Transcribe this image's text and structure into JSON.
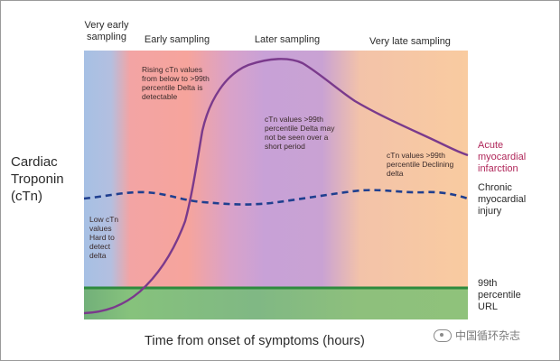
{
  "phases": [
    {
      "label": "Very early sampling"
    },
    {
      "label": "Early sampling"
    },
    {
      "label": "Later sampling"
    },
    {
      "label": "Very late sampling"
    }
  ],
  "notes": [
    {
      "text": "Low cTn values Hard to detect delta"
    },
    {
      "text": "Rising cTn values from below to >99th percentile Delta is detectable"
    },
    {
      "text": "cTn values >99th percentile Delta may not be seen over a short period"
    },
    {
      "text": "cTn values >99th percentile Declining delta"
    }
  ],
  "y_axis_label": "Cardiac Troponin (cTn)",
  "x_axis_label": "Time from onset of symptoms (hours)",
  "curves": [
    {
      "label": "Acute myocardial infarction",
      "color": "#8e3b8e",
      "style": "solid"
    },
    {
      "label": "Chronic myocardial injury",
      "color": "#1f3f8f",
      "style": "dashed"
    },
    {
      "label": "99th percentile URL",
      "color": "#2e8b3e",
      "style": "solid"
    }
  ],
  "colors": {
    "zone_very_early": "#a9c1e3",
    "zone_early": "#f7a6a0",
    "zone_later": "#c9a1d6",
    "zone_very_late": "#f8c9a0",
    "url_band": "#7fbf7f"
  },
  "watermark": {
    "text": "中国循环杂志",
    "icon": "wechat-icon"
  }
}
